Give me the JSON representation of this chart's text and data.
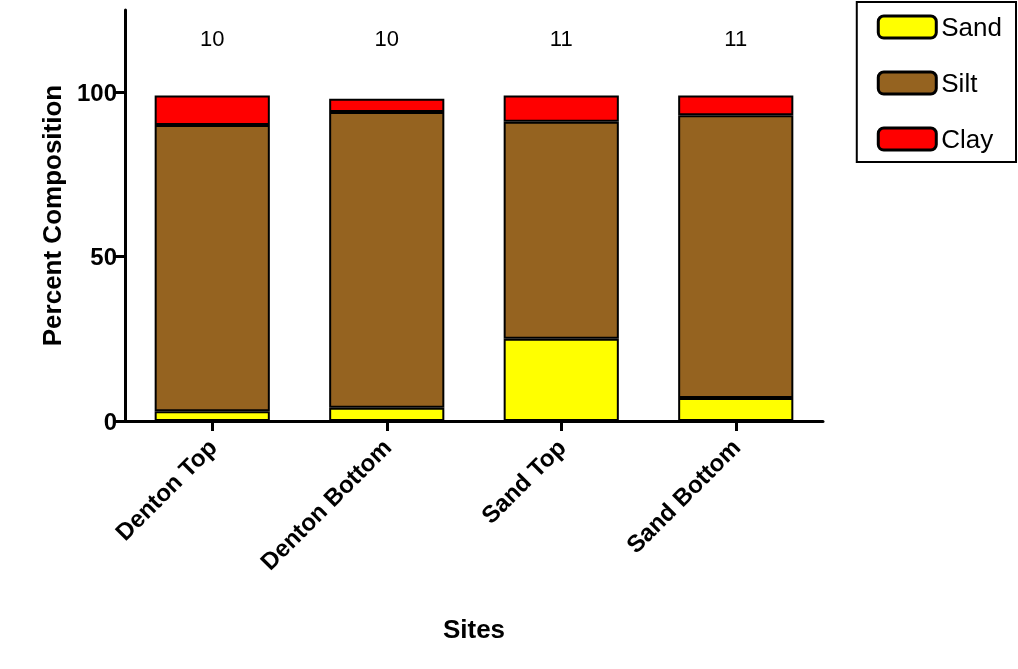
{
  "chart_data": {
    "type": "bar",
    "stacked": true,
    "xlabel": "Sites",
    "ylabel": "Percent Composition",
    "categories": [
      "Denton Top",
      "Denton Bottom",
      "Sand Top",
      "Sand Bottom"
    ],
    "series": [
      {
        "name": "Sand",
        "color": "#ffff00",
        "values": [
          3,
          4,
          25,
          7
        ]
      },
      {
        "name": "Silt",
        "color": "#956320",
        "values": [
          87,
          90,
          66,
          86
        ]
      },
      {
        "name": "Clay",
        "color": "#ff0000",
        "values": [
          9,
          4,
          8,
          6
        ]
      }
    ],
    "ylim": [
      0,
      125
    ],
    "yticks": [
      0,
      50,
      100
    ],
    "grid": false,
    "legend": "top right",
    "annotations": [
      "10",
      "10",
      "11",
      "11"
    ]
  }
}
